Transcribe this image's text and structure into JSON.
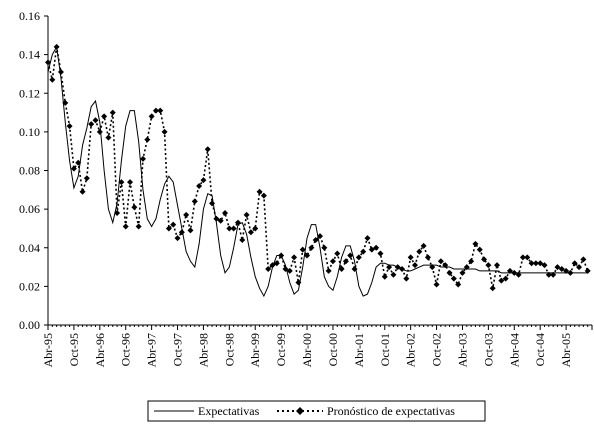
{
  "chart_data": {
    "type": "line",
    "title": "",
    "xlabel": "",
    "ylabel": "",
    "ylim": [
      0,
      0.16
    ],
    "y_ticks": [
      "0.00",
      "0.02",
      "0.04",
      "0.06",
      "0.08",
      "0.10",
      "0.12",
      "0.14",
      "0.16"
    ],
    "x_tick_labels": [
      "Abr-95",
      "Oct-95",
      "Abr-96",
      "Oct-96",
      "Abr-97",
      "Oct-97",
      "Abr-98",
      "Oct-98",
      "Abr-99",
      "Oct-99",
      "Abr-00",
      "Oct-00",
      "Abr-01",
      "Oct-01",
      "Abr-02",
      "Oct-02",
      "Abr-03",
      "Oct-03",
      "Abr-04",
      "Oct-04",
      "Abr-05"
    ],
    "x_start": "Abr-95",
    "x_end": "Sep-05",
    "grid": false,
    "legend_position": "bottom",
    "series": [
      {
        "name": "Expectativas",
        "style": "solid",
        "values": [
          0.131,
          0.14,
          0.144,
          0.128,
          0.105,
          0.085,
          0.071,
          0.077,
          0.093,
          0.102,
          0.113,
          0.116,
          0.105,
          0.08,
          0.06,
          0.053,
          0.063,
          0.085,
          0.103,
          0.111,
          0.111,
          0.095,
          0.07,
          0.055,
          0.051,
          0.055,
          0.065,
          0.073,
          0.077,
          0.074,
          0.062,
          0.05,
          0.038,
          0.033,
          0.03,
          0.042,
          0.06,
          0.068,
          0.067,
          0.053,
          0.036,
          0.027,
          0.03,
          0.04,
          0.052,
          0.053,
          0.047,
          0.035,
          0.025,
          0.019,
          0.015,
          0.02,
          0.03,
          0.036,
          0.036,
          0.031,
          0.022,
          0.016,
          0.018,
          0.03,
          0.045,
          0.052,
          0.052,
          0.04,
          0.025,
          0.02,
          0.018,
          0.025,
          0.035,
          0.041,
          0.041,
          0.033,
          0.02,
          0.015,
          0.016,
          0.022,
          0.03,
          0.032,
          0.032,
          0.031,
          0.031,
          0.03,
          0.029,
          0.028,
          0.028,
          0.029,
          0.03,
          0.031,
          0.031,
          0.031,
          0.031,
          0.03,
          0.03,
          0.03,
          0.029,
          0.029,
          0.029,
          0.029,
          0.029,
          0.029,
          0.028,
          0.028,
          0.028,
          0.028,
          0.028,
          0.027,
          0.027,
          0.027,
          0.027,
          0.027,
          0.027,
          0.027,
          0.027,
          0.027,
          0.027,
          0.027,
          0.027,
          0.027,
          0.027,
          0.027,
          0.027,
          0.027,
          0.027,
          0.027,
          0.027,
          0.027
        ]
      },
      {
        "name": "Pronóstico de expectativas",
        "style": "dotted-diamond",
        "values": [
          0.136,
          0.127,
          0.144,
          0.131,
          0.115,
          0.103,
          0.081,
          0.084,
          0.069,
          0.076,
          0.104,
          0.106,
          0.1,
          0.108,
          0.097,
          0.11,
          0.058,
          0.074,
          0.051,
          0.074,
          0.061,
          0.051,
          0.086,
          0.096,
          0.108,
          0.111,
          0.111,
          0.1,
          0.05,
          0.052,
          0.045,
          0.048,
          0.057,
          0.049,
          0.064,
          0.072,
          0.075,
          0.091,
          0.063,
          0.055,
          0.054,
          0.058,
          0.05,
          0.05,
          0.053,
          0.044,
          0.057,
          0.048,
          0.05,
          0.069,
          0.067,
          0.029,
          0.031,
          0.032,
          0.036,
          0.029,
          0.028,
          0.035,
          0.022,
          0.039,
          0.036,
          0.04,
          0.044,
          0.046,
          0.04,
          0.028,
          0.033,
          0.037,
          0.029,
          0.033,
          0.036,
          0.029,
          0.035,
          0.038,
          0.045,
          0.039,
          0.04,
          0.037,
          0.025,
          0.03,
          0.026,
          0.03,
          0.029,
          0.024,
          0.035,
          0.031,
          0.038,
          0.041,
          0.035,
          0.03,
          0.021,
          0.033,
          0.031,
          0.027,
          0.024,
          0.021,
          0.027,
          0.03,
          0.033,
          0.042,
          0.039,
          0.034,
          0.031,
          0.019,
          0.031,
          0.023,
          0.024,
          0.028,
          0.027,
          0.026,
          0.035,
          0.035,
          0.032,
          0.032,
          0.032,
          0.031,
          0.026,
          0.026,
          0.03,
          0.029,
          0.028,
          0.027,
          0.032,
          0.03,
          0.034,
          0.028
        ]
      }
    ]
  }
}
